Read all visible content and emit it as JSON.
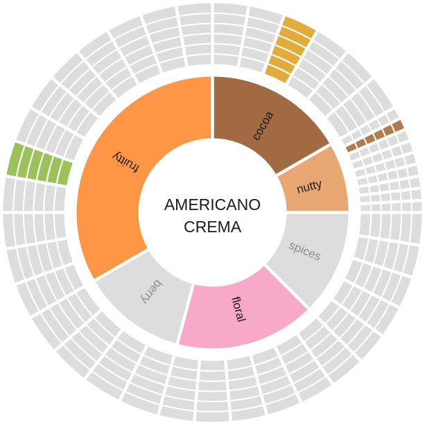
{
  "center": {
    "line1": "AMERICANO",
    "line2": "CREMA"
  },
  "chart_data": {
    "type": "sunburst",
    "title": "AMERICANO CREMA",
    "categories": [
      {
        "name": "cocoa",
        "angle_deg": 60,
        "color": "#a26a43",
        "highlighted": true,
        "text_color": "#1a1a1a",
        "outer_segments": [
          false,
          false,
          true,
          false,
          false,
          false
        ]
      },
      {
        "name": "nutty",
        "angle_deg": 30,
        "color": "#e8a672",
        "highlighted": true,
        "text_color": "#1a1a1a",
        "outer_segments": [
          false,
          true,
          false,
          false,
          false,
          false,
          false,
          false,
          false
        ]
      },
      {
        "name": "spices",
        "angle_deg": 45,
        "color": "#dddddd",
        "highlighted": false,
        "text_color": "#8c8c8c",
        "outer_segments": [
          false,
          false,
          false,
          false,
          false
        ]
      },
      {
        "name": "floral",
        "angle_deg": 60,
        "color": "#f8a8c8",
        "highlighted": true,
        "text_color": "#1a1a1a",
        "outer_segments": [
          false,
          false,
          false,
          false,
          false,
          false
        ]
      },
      {
        "name": "berry",
        "angle_deg": 45,
        "color": "#dddddd",
        "highlighted": false,
        "text_color": "#8c8c8c",
        "outer_segments": [
          false,
          false,
          false,
          false
        ]
      },
      {
        "name": "fruitty",
        "angle_deg": 120,
        "color": "#ff9645",
        "highlighted": true,
        "text_color": "#1a1a1a",
        "outer_segments": [
          false,
          false,
          false,
          false,
          true,
          false,
          false,
          false,
          false,
          false,
          false,
          false
        ]
      }
    ],
    "outer_colors": {
      "cocoa": "#e1ac3b",
      "nutty": "#b47a4e",
      "fruitty": "#9bc25a",
      "inactive": "#dddddd",
      "berry": "#f8b354"
    }
  }
}
